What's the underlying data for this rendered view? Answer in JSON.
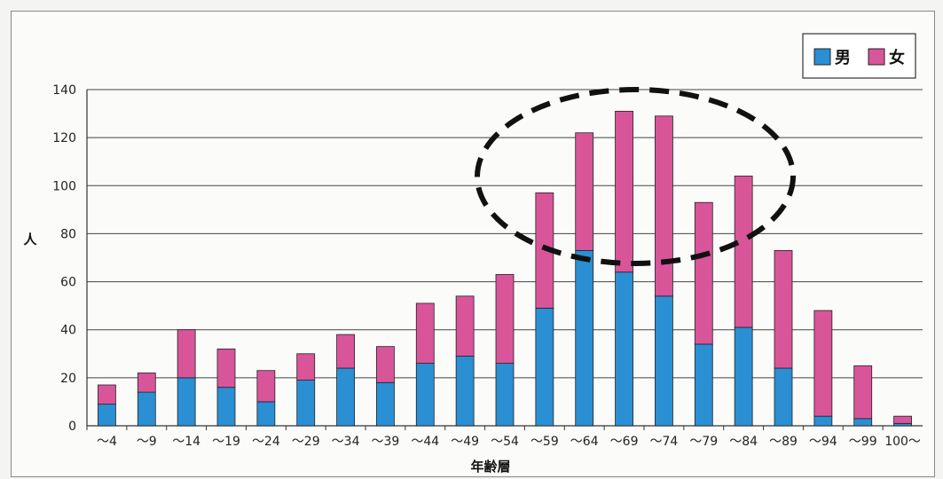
{
  "chart_data": {
    "type": "bar",
    "stacked": true,
    "title": "",
    "xlabel": "年齢層",
    "ylabel": "人",
    "ylim": [
      0,
      140
    ],
    "yticks": [
      0,
      20,
      40,
      60,
      80,
      100,
      120,
      140
    ],
    "grid": true,
    "legend_position": "top-right",
    "categories": [
      "～4",
      "～9",
      "～14",
      "～19",
      "～24",
      "～29",
      "～34",
      "～39",
      "～44",
      "～49",
      "～54",
      "～59",
      "～64",
      "～69",
      "～74",
      "～79",
      "～84",
      "～89",
      "～94",
      "～99",
      "100～"
    ],
    "series": [
      {
        "name": "男",
        "color": "#2b8fd3",
        "values": [
          9,
          14,
          20,
          16,
          10,
          19,
          24,
          18,
          26,
          29,
          26,
          49,
          73,
          64,
          54,
          34,
          41,
          24,
          4,
          3,
          1
        ]
      },
      {
        "name": "女",
        "color": "#d9559a",
        "values": [
          8,
          8,
          20,
          16,
          13,
          11,
          14,
          15,
          25,
          25,
          37,
          48,
          49,
          67,
          75,
          59,
          63,
          49,
          44,
          22,
          3
        ]
      }
    ],
    "annotation": {
      "type": "dashed-ellipse",
      "shape_color": "#111111"
    }
  }
}
